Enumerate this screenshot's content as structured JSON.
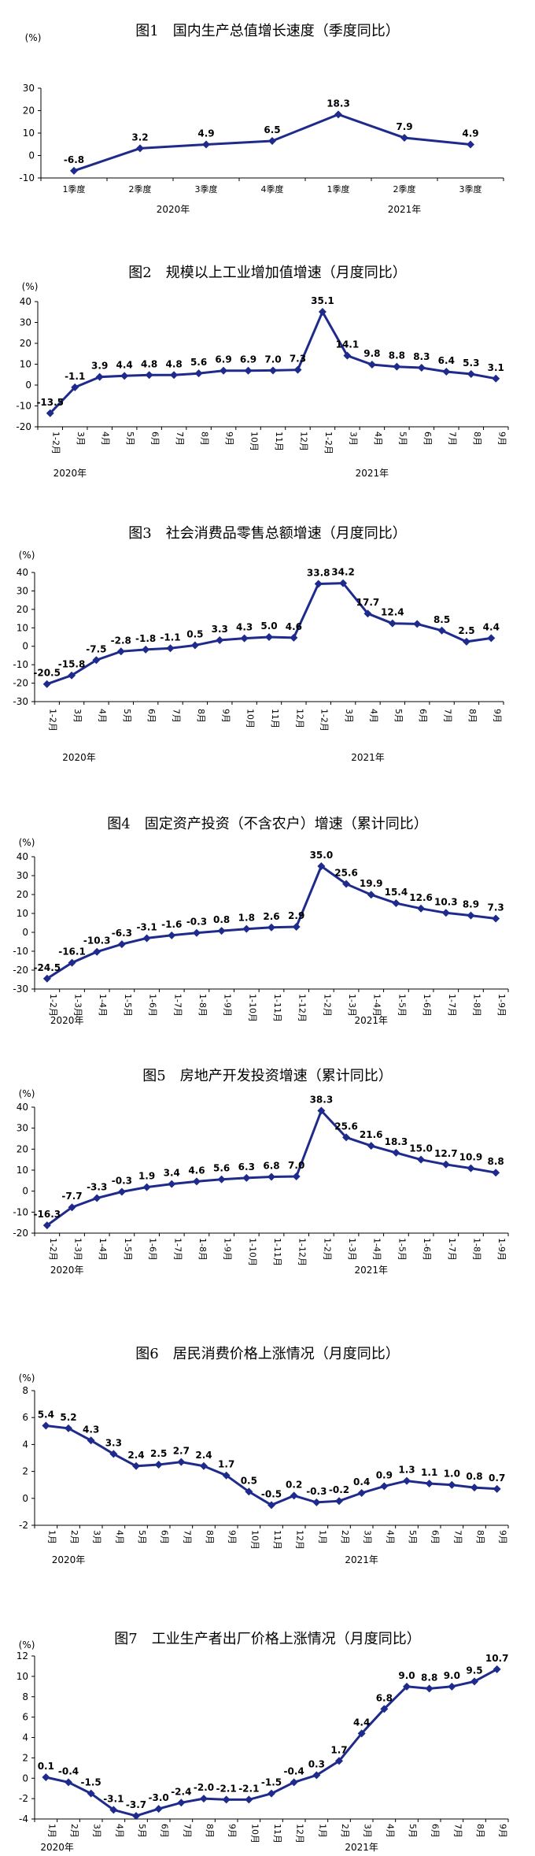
{
  "chart_data": [
    {
      "type": "line",
      "title": "图1　国内生产总值增长速度（季度同比）",
      "unit": "(%)",
      "categories": [
        "1季度",
        "2季度",
        "3季度",
        "4季度",
        "1季度",
        "2季度",
        "3季度"
      ],
      "values": [
        -6.8,
        3.2,
        4.9,
        6.5,
        18.3,
        7.9,
        4.9
      ],
      "labels": [
        "-6.8",
        "3.2",
        "4.9",
        "6.5",
        "18.3",
        "7.9",
        "4.9"
      ],
      "years": [
        {
          "label": "2020年",
          "center": 1.5
        },
        {
          "label": "2021年",
          "center": 5
        }
      ],
      "ylim": [
        -10,
        30
      ],
      "yticks": [
        "-10",
        "0",
        "10",
        "20",
        "30"
      ],
      "color": "#1f2b8c"
    },
    {
      "type": "line",
      "title": "图2　规模以上工业增加值增速（月度同比）",
      "unit": "(%)",
      "categories": [
        "1-2月",
        "3月",
        "4月",
        "5月",
        "6月",
        "7月",
        "8月",
        "9月",
        "10月",
        "11月",
        "12月",
        "1-2月",
        "3月",
        "4月",
        "5月",
        "6月",
        "7月",
        "8月",
        "9月"
      ],
      "values": [
        -13.5,
        -1.1,
        3.9,
        4.4,
        4.8,
        4.8,
        5.6,
        6.9,
        6.9,
        7.0,
        7.3,
        35.1,
        14.1,
        9.8,
        8.8,
        8.3,
        6.4,
        5.3,
        3.1
      ],
      "labels": [
        "-13.5",
        "-1.1",
        "3.9",
        "4.4",
        "4.8",
        "4.8",
        "5.6",
        "6.9",
        "6.9",
        "7.0",
        "7.3",
        "35.1",
        "14.1",
        "9.8",
        "8.8",
        "8.3",
        "6.4",
        "5.3",
        "3.1"
      ],
      "years": [
        {
          "label": "2020年",
          "center": 0.8
        },
        {
          "label": "2021年",
          "center": 13
        }
      ],
      "ylim": [
        -20,
        40
      ],
      "yticks": [
        "-20",
        "-10",
        "0",
        "10",
        "20",
        "30",
        "40"
      ],
      "color": "#1f2b8c"
    },
    {
      "type": "line",
      "title": "图3　社会消费品零售总额增速（月度同比）",
      "unit": "(%)",
      "categories": [
        "1-2月",
        "3月",
        "4月",
        "5月",
        "6月",
        "7月",
        "8月",
        "9月",
        "10月",
        "11月",
        "12月",
        "1-2月",
        "3月",
        "4月",
        "5月",
        "6月",
        "7月",
        "8月",
        "9月"
      ],
      "values": [
        -20.5,
        -15.8,
        -7.5,
        -2.8,
        -1.8,
        -1.1,
        0.5,
        3.3,
        4.3,
        5.0,
        4.6,
        33.8,
        34.2,
        17.7,
        12.4,
        12.1,
        8.5,
        2.5,
        4.4
      ],
      "labels": [
        "-20.5",
        "-15.8",
        "-7.5",
        "-2.8",
        "-1.8",
        "-1.1",
        "0.5",
        "3.3",
        "4.3",
        "5.0",
        "4.6",
        "33.8",
        "34.2",
        "17.7",
        "12.4",
        "",
        "8.5",
        "2.5",
        "4.4"
      ],
      "years": [
        {
          "label": "2020年",
          "center": 1.3
        },
        {
          "label": "2021年",
          "center": 13
        }
      ],
      "ylim": [
        -30,
        40
      ],
      "yticks": [
        "-30",
        "-20",
        "-10",
        "0",
        "10",
        "20",
        "30",
        "40"
      ],
      "color": "#1f2b8c"
    },
    {
      "type": "line",
      "title": "图4　固定资产投资（不含农户）增速（累计同比）",
      "unit": "(%)",
      "categories": [
        "1-2月",
        "1-3月",
        "1-4月",
        "1-5月",
        "1-6月",
        "1-7月",
        "1-8月",
        "1-9月",
        "1-10月",
        "1-11月",
        "1-12月",
        "1-2月",
        "1-3月",
        "1-4月",
        "1-5月",
        "1-6月",
        "1-7月",
        "1-8月",
        "1-9月"
      ],
      "values": [
        -24.5,
        -16.1,
        -10.3,
        -6.3,
        -3.1,
        -1.6,
        -0.3,
        0.8,
        1.8,
        2.6,
        2.9,
        35.0,
        25.6,
        19.9,
        15.4,
        12.6,
        10.3,
        8.9,
        7.3
      ],
      "labels": [
        "-24.5",
        "-16.1",
        "-10.3",
        "-6.3",
        "-3.1",
        "-1.6",
        "-0.3",
        "0.8",
        "1.8",
        "2.6",
        "2.9",
        "35.0",
        "25.6",
        "19.9",
        "15.4",
        "12.6",
        "10.3",
        "8.9",
        "7.3"
      ],
      "years": [
        {
          "label": "2020年",
          "center": 0.8
        },
        {
          "label": "2021年",
          "center": 13
        }
      ],
      "ylim": [
        -30,
        40
      ],
      "yticks": [
        "-30",
        "-20",
        "-10",
        "0",
        "10",
        "20",
        "30",
        "40"
      ],
      "color": "#1f2b8c"
    },
    {
      "type": "line",
      "title": "图5　房地产开发投资增速（累计同比）",
      "unit": "(%)",
      "categories": [
        "1-2月",
        "1-3月",
        "1-4月",
        "1-5月",
        "1-6月",
        "1-7月",
        "1-8月",
        "1-9月",
        "1-10月",
        "1-11月",
        "1-12月",
        "1-2月",
        "1-3月",
        "1-4月",
        "1-5月",
        "1-6月",
        "1-7月",
        "1-8月",
        "1-9月"
      ],
      "values": [
        -16.3,
        -7.7,
        -3.3,
        -0.3,
        1.9,
        3.4,
        4.6,
        5.6,
        6.3,
        6.8,
        7.0,
        38.3,
        25.6,
        21.6,
        18.3,
        15.0,
        12.7,
        10.9,
        8.8
      ],
      "labels": [
        "-16.3",
        "-7.7",
        "-3.3",
        "-0.3",
        "1.9",
        "3.4",
        "4.6",
        "5.6",
        "6.3",
        "6.8",
        "7.0",
        "38.3",
        "25.6",
        "21.6",
        "18.3",
        "15.0",
        "12.7",
        "10.9",
        "8.8"
      ],
      "years": [
        {
          "label": "2020年",
          "center": 0.8
        },
        {
          "label": "2021年",
          "center": 13
        }
      ],
      "ylim": [
        -20,
        40
      ],
      "yticks": [
        "-20",
        "-10",
        "0",
        "10",
        "20",
        "30",
        "40"
      ],
      "color": "#1f2b8c"
    },
    {
      "type": "line",
      "title": "图6　居民消费价格上涨情况（月度同比）",
      "unit": "(%)",
      "categories": [
        "1月",
        "2月",
        "3月",
        "4月",
        "5月",
        "6月",
        "7月",
        "8月",
        "9月",
        "10月",
        "11月",
        "12月",
        "1月",
        "2月",
        "3月",
        "4月",
        "5月",
        "6月",
        "7月",
        "8月",
        "9月"
      ],
      "values": [
        5.4,
        5.2,
        4.3,
        3.3,
        2.4,
        2.5,
        2.7,
        2.4,
        1.7,
        0.5,
        -0.5,
        0.2,
        -0.3,
        -0.2,
        0.4,
        0.9,
        1.3,
        1.1,
        1.0,
        0.8,
        0.7
      ],
      "labels": [
        "5.4",
        "5.2",
        "4.3",
        "3.3",
        "2.4",
        "2.5",
        "2.7",
        "2.4",
        "1.7",
        "0.5",
        "-0.5",
        "0.2",
        "-0.3",
        "-0.2",
        "0.4",
        "0.9",
        "1.3",
        "1.1",
        "1.0",
        "0.8",
        "0.7"
      ],
      "years": [
        {
          "label": "2020年",
          "center": 1
        },
        {
          "label": "2021年",
          "center": 14
        }
      ],
      "ylim": [
        -2,
        8
      ],
      "yticks": [
        "-2",
        "0",
        "2",
        "4",
        "6",
        "8"
      ],
      "color": "#1f2b8c"
    },
    {
      "type": "line",
      "title": "图7　工业生产者出厂价格上涨情况（月度同比）",
      "unit": "(%)",
      "categories": [
        "1月",
        "2月",
        "3月",
        "4月",
        "5月",
        "6月",
        "7月",
        "8月",
        "9月",
        "10月",
        "11月",
        "12月",
        "1月",
        "2月",
        "3月",
        "4月",
        "5月",
        "6月",
        "7月",
        "8月",
        "9月"
      ],
      "values": [
        0.1,
        -0.4,
        -1.5,
        -3.1,
        -3.7,
        -3.0,
        -2.4,
        -2.0,
        -2.1,
        -2.1,
        -1.5,
        -0.4,
        0.3,
        1.7,
        4.4,
        6.8,
        9.0,
        8.8,
        9.0,
        9.5,
        10.7
      ],
      "labels": [
        "0.1",
        "-0.4",
        "-1.5",
        "-3.1",
        "-3.7",
        "-3.0",
        "-2.4",
        "-2.0",
        "-2.1",
        "-2.1",
        "-1.5",
        "-0.4",
        "0.3",
        "1.7",
        "4.4",
        "6.8",
        "9.0",
        "8.8",
        "9.0",
        "9.5",
        "10.7"
      ],
      "years": [
        {
          "label": "2020年",
          "center": 0.5
        },
        {
          "label": "2021年",
          "center": 14
        }
      ],
      "ylim": [
        -4,
        12
      ],
      "yticks": [
        "-4",
        "-2",
        "0",
        "2",
        "4",
        "6",
        "8",
        "10",
        "12"
      ],
      "color": "#1f2b8c"
    }
  ]
}
